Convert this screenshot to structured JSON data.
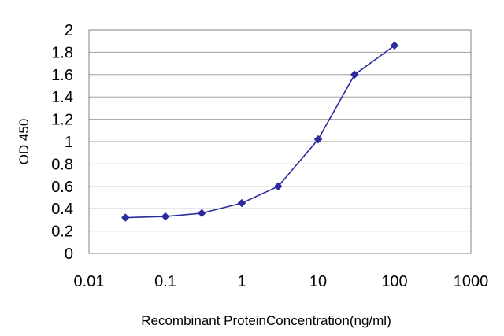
{
  "chart_data": {
    "type": "line",
    "x_scale": "log",
    "xlabel": "Recombinant ProteinConcentration(ng/ml)",
    "ylabel": "OD 450",
    "xlim": [
      0.01,
      1000
    ],
    "ylim": [
      0,
      2
    ],
    "x_ticks": [
      {
        "value": 0.01,
        "label": "0.01"
      },
      {
        "value": 0.1,
        "label": "0.1"
      },
      {
        "value": 1,
        "label": "1"
      },
      {
        "value": 10,
        "label": "10"
      },
      {
        "value": 100,
        "label": "100"
      },
      {
        "value": 1000,
        "label": "1000"
      }
    ],
    "y_ticks": [
      {
        "value": 0,
        "label": "0"
      },
      {
        "value": 0.2,
        "label": "0.2"
      },
      {
        "value": 0.4,
        "label": "0.4"
      },
      {
        "value": 0.6,
        "label": "0.6"
      },
      {
        "value": 0.8,
        "label": "0.8"
      },
      {
        "value": 1,
        "label": "1"
      },
      {
        "value": 1.2,
        "label": "1.2"
      },
      {
        "value": 1.4,
        "label": "1.4"
      },
      {
        "value": 1.6,
        "label": "1.6"
      },
      {
        "value": 1.8,
        "label": "1.8"
      },
      {
        "value": 2,
        "label": "2"
      }
    ],
    "grid": "horizontal",
    "series": [
      {
        "x": [
          0.03,
          0.1,
          0.3,
          1,
          3,
          10,
          30,
          100
        ],
        "y": [
          0.32,
          0.33,
          0.36,
          0.45,
          0.6,
          1.02,
          1.6,
          1.86
        ],
        "color": "#2b2b9e",
        "marker": "diamond"
      }
    ]
  }
}
